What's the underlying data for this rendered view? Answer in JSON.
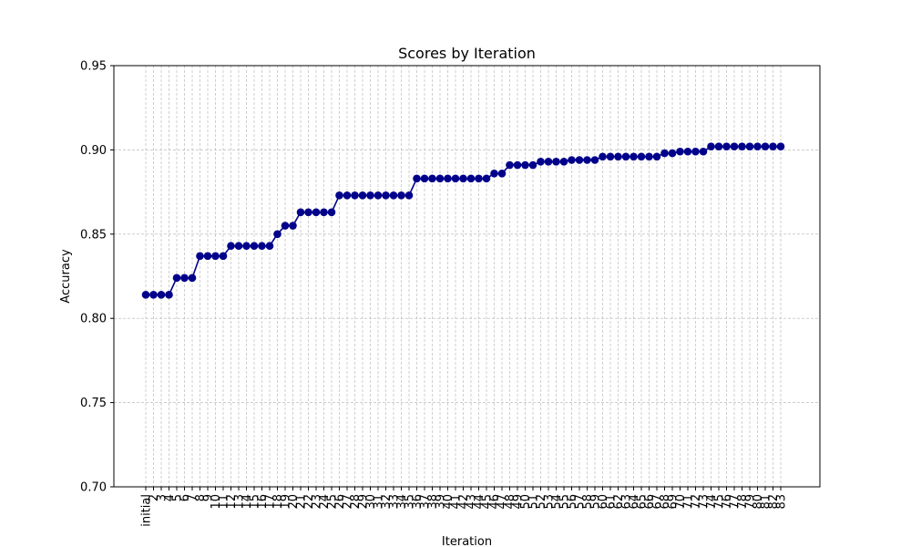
{
  "chart_data": {
    "type": "line",
    "title": "Scores by Iteration",
    "xlabel": "Iteration",
    "ylabel": "Accuracy",
    "ylim": [
      0.7,
      0.95
    ],
    "yticks": [
      "0.70",
      "0.75",
      "0.80",
      "0.85",
      "0.90",
      "0.95"
    ],
    "grid": true,
    "colors": {
      "line": "#00008b",
      "marker": "#00008b",
      "grid": "#b0b0b0"
    },
    "categories": [
      "initial",
      "2",
      "3",
      "4",
      "5",
      "6",
      "7",
      "8",
      "9",
      "10",
      "11",
      "12",
      "13",
      "14",
      "15",
      "16",
      "17",
      "18",
      "19",
      "20",
      "21",
      "22",
      "23",
      "24",
      "25",
      "26",
      "27",
      "28",
      "29",
      "30",
      "31",
      "32",
      "33",
      "34",
      "35",
      "36",
      "37",
      "38",
      "39",
      "40",
      "41",
      "42",
      "43",
      "44",
      "45",
      "46",
      "47",
      "48",
      "49",
      "50",
      "51",
      "52",
      "53",
      "54",
      "55",
      "56",
      "57",
      "58",
      "59",
      "60",
      "61",
      "62",
      "63",
      "64",
      "65",
      "66",
      "67",
      "68",
      "69",
      "70",
      "71",
      "72",
      "73",
      "74",
      "75",
      "76",
      "77",
      "78",
      "79",
      "80",
      "81",
      "82",
      "83"
    ],
    "series": [
      {
        "values": [
          0.814,
          0.814,
          0.814,
          0.814,
          0.824,
          0.824,
          0.824,
          0.837,
          0.837,
          0.837,
          0.837,
          0.843,
          0.843,
          0.843,
          0.843,
          0.843,
          0.843,
          0.85,
          0.855,
          0.855,
          0.863,
          0.863,
          0.863,
          0.863,
          0.863,
          0.873,
          0.873,
          0.873,
          0.873,
          0.873,
          0.873,
          0.873,
          0.873,
          0.873,
          0.873,
          0.883,
          0.883,
          0.883,
          0.883,
          0.883,
          0.883,
          0.883,
          0.883,
          0.883,
          0.883,
          0.886,
          0.886,
          0.891,
          0.891,
          0.891,
          0.891,
          0.893,
          0.893,
          0.893,
          0.893,
          0.894,
          0.894,
          0.894,
          0.894,
          0.896,
          0.896,
          0.896,
          0.896,
          0.896,
          0.896,
          0.896,
          0.896,
          0.898,
          0.898,
          0.899,
          0.899,
          0.899,
          0.899,
          0.902,
          0.902,
          0.902,
          0.902,
          0.902,
          0.902,
          0.902,
          0.902,
          0.902,
          0.902
        ]
      }
    ]
  }
}
